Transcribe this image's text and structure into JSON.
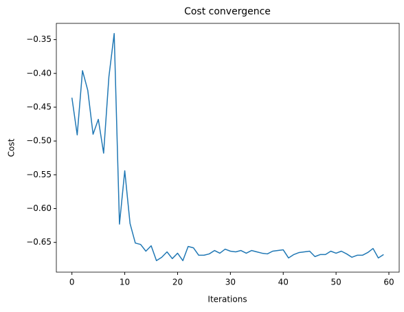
{
  "chart_data": {
    "type": "line",
    "title": "Cost convergence",
    "x_label": "Iterations",
    "y_label": "Cost",
    "x": [
      0,
      1,
      2,
      3,
      4,
      5,
      6,
      7,
      8,
      9,
      10,
      11,
      12,
      13,
      14,
      15,
      16,
      17,
      18,
      19,
      20,
      21,
      22,
      23,
      24,
      25,
      26,
      27,
      28,
      29,
      30,
      31,
      32,
      33,
      34,
      35,
      36,
      37,
      38,
      39,
      40,
      41,
      42,
      43,
      44,
      45,
      46,
      47,
      48,
      49,
      50,
      51,
      52,
      53,
      54,
      55,
      56,
      57,
      58,
      59
    ],
    "series": [
      {
        "name": "Cost",
        "color": "#1f77b4",
        "values": [
          -0.436,
          -0.491,
          -0.396,
          -0.425,
          -0.49,
          -0.468,
          -0.518,
          -0.405,
          -0.341,
          -0.623,
          -0.544,
          -0.622,
          -0.651,
          -0.653,
          -0.663,
          -0.655,
          -0.677,
          -0.672,
          -0.664,
          -0.674,
          -0.666,
          -0.677,
          -0.656,
          -0.658,
          -0.669,
          -0.669,
          -0.667,
          -0.662,
          -0.666,
          -0.66,
          -0.663,
          -0.664,
          -0.662,
          -0.666,
          -0.662,
          -0.664,
          -0.666,
          -0.667,
          -0.663,
          -0.662,
          -0.661,
          -0.673,
          -0.668,
          -0.665,
          -0.664,
          -0.663,
          -0.671,
          -0.668,
          -0.668,
          -0.663,
          -0.666,
          -0.663,
          -0.667,
          -0.672,
          -0.669,
          -0.669,
          -0.665,
          -0.659,
          -0.673,
          -0.668
        ]
      }
    ],
    "xlim": [
      -2.95,
      61.95
    ],
    "xticks": [
      0,
      10,
      20,
      30,
      40,
      50,
      60
    ],
    "ylim": [
      -0.694,
      -0.326
    ],
    "yticks": [
      {
        "value": -0.35,
        "label": "−0.35"
      },
      {
        "value": -0.4,
        "label": "−0.40"
      },
      {
        "value": -0.45,
        "label": "−0.45"
      },
      {
        "value": -0.5,
        "label": "−0.50"
      },
      {
        "value": -0.55,
        "label": "−0.55"
      },
      {
        "value": -0.6,
        "label": "−0.60"
      },
      {
        "value": -0.65,
        "label": "−0.65"
      }
    ],
    "grid": false
  }
}
